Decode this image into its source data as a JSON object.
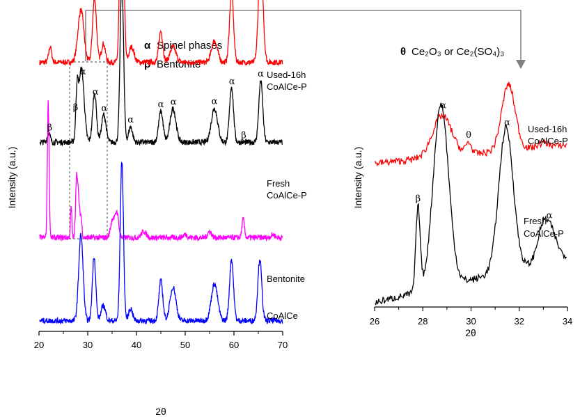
{
  "legend": {
    "alpha_symbol": "α",
    "alpha_text": "Spinel phases",
    "beta_symbol": "β",
    "beta_text": "Bentonite",
    "theta_symbol": "θ",
    "theta_text": "Ce₂O₃ or Ce₂(SO₄)₃"
  },
  "colors": {
    "used": "#ff0000",
    "fresh": "#000000",
    "bentonite": "#ff00ff",
    "coalce": "#0000ff",
    "connector": "#808080",
    "zoom_box": "#808080"
  },
  "chart_data": [
    {
      "type": "line",
      "panel": "left",
      "xlabel": "2θ",
      "ylabel": "Intensity (a.u.)",
      "xlim": [
        20,
        70
      ],
      "x_ticks": [
        20,
        30,
        40,
        50,
        60,
        70
      ],
      "y_ticks": "none (offset stacked patterns)",
      "zoom_region_x": [
        26,
        34
      ],
      "series": [
        {
          "name": "Used-16h\nCoAlCe-P",
          "key": "used",
          "color": "#ff0000",
          "baseline": 0.84,
          "peaks": [
            [
              22.3,
              0.05,
              0.3
            ],
            [
              28.6,
              0.17,
              0.6
            ],
            [
              31.4,
              0.21,
              0.4
            ],
            [
              33.2,
              0.06,
              0.4
            ],
            [
              37.0,
              0.84,
              0.35
            ],
            [
              39.0,
              0.05,
              0.5
            ],
            [
              45.0,
              0.1,
              0.4
            ],
            [
              47.5,
              0.05,
              0.6
            ],
            [
              56.0,
              0.07,
              0.6
            ],
            [
              59.5,
              0.23,
              0.4
            ],
            [
              65.5,
              0.36,
              0.45
            ]
          ]
        },
        {
          "name": "Fresh\nCoAlCe-P",
          "key": "fresh",
          "color": "#000000",
          "baseline": 0.58,
          "peaks": [
            [
              22.0,
              0.03,
              0.3
            ],
            [
              27.8,
              0.14,
              0.25
            ],
            [
              28.7,
              0.24,
              0.55
            ],
            [
              31.4,
              0.16,
              0.4
            ],
            [
              33.3,
              0.09,
              0.45
            ],
            [
              37.0,
              0.53,
              0.35
            ],
            [
              38.8,
              0.05,
              0.4
            ],
            [
              45.0,
              0.1,
              0.45
            ],
            [
              47.5,
              0.11,
              0.6
            ],
            [
              56.0,
              0.11,
              0.65
            ],
            [
              59.5,
              0.18,
              0.4
            ],
            [
              65.5,
              0.2,
              0.4
            ]
          ]
        },
        {
          "name": "Bentonite",
          "key": "bentonite",
          "color": "#ff00ff",
          "baseline": 0.27,
          "peaks": [
            [
              21.9,
              0.44,
              0.18
            ],
            [
              26.6,
              0.1,
              0.15
            ],
            [
              27.7,
              0.19,
              0.2
            ],
            [
              28.1,
              0.12,
              0.2
            ],
            [
              28.6,
              0.07,
              0.2
            ],
            [
              35.1,
              0.06,
              0.4
            ],
            [
              36.0,
              0.08,
              0.35
            ],
            [
              41.5,
              0.02,
              0.5
            ],
            [
              50.0,
              0.01,
              0.4
            ],
            [
              55.0,
              0.02,
              0.4
            ],
            [
              61.9,
              0.06,
              0.25
            ],
            [
              68.0,
              0.01,
              0.4
            ]
          ]
        },
        {
          "name": "CoAlCe",
          "key": "coalce",
          "color": "#0000ff",
          "baseline": 0.0,
          "peaks": [
            [
              28.6,
              0.28,
              0.45
            ],
            [
              31.3,
              0.21,
              0.35
            ],
            [
              33.2,
              0.05,
              0.45
            ],
            [
              37.0,
              0.52,
              0.33
            ],
            [
              38.8,
              0.04,
              0.4
            ],
            [
              45.0,
              0.13,
              0.4
            ],
            [
              47.5,
              0.11,
              0.6
            ],
            [
              56.0,
              0.12,
              0.65
            ],
            [
              59.5,
              0.2,
              0.4
            ],
            [
              65.3,
              0.2,
              0.4
            ]
          ]
        }
      ],
      "annotations": [
        {
          "symbol": "β",
          "x": 22.2,
          "row": "fresh"
        },
        {
          "symbol": "β",
          "x": 27.5,
          "row": "fresh"
        },
        {
          "symbol": "α",
          "x": 29.0,
          "row": "fresh"
        },
        {
          "symbol": "α",
          "x": 31.6,
          "row": "fresh"
        },
        {
          "symbol": "α",
          "x": 33.4,
          "row": "fresh"
        },
        {
          "symbol": "α",
          "x": 37.2,
          "row": "fresh"
        },
        {
          "symbol": "α",
          "x": 38.8,
          "row": "fresh"
        },
        {
          "symbol": "α",
          "x": 45.0,
          "row": "fresh"
        },
        {
          "symbol": "α",
          "x": 47.6,
          "row": "fresh"
        },
        {
          "symbol": "α",
          "x": 56.0,
          "row": "fresh"
        },
        {
          "symbol": "α",
          "x": 59.6,
          "row": "fresh"
        },
        {
          "symbol": "β",
          "x": 62.0,
          "row": "fresh"
        },
        {
          "symbol": "α",
          "x": 65.5,
          "row": "fresh"
        }
      ]
    },
    {
      "type": "line",
      "panel": "right",
      "xlabel": "2θ",
      "ylabel": "Intensity (a.u.)",
      "xlim": [
        26,
        34
      ],
      "x_ticks": [
        26,
        28,
        30,
        32,
        34
      ],
      "series": [
        {
          "name": "Used-16h\nCoAlCe-P",
          "key": "used",
          "color": "#ff0000",
          "base": 0.61,
          "slope": 0.01,
          "peaks": [
            [
              28.8,
              0.18,
              0.4
            ],
            [
              29.9,
              0.05,
              0.12
            ],
            [
              31.55,
              0.29,
              0.28
            ],
            [
              33.0,
              0.02,
              0.25
            ]
          ]
        },
        {
          "name": "Fresh\nCoAlCe-P",
          "key": "fresh",
          "color": "#000000",
          "base": 0.0,
          "slope": 0.025,
          "peaks": [
            [
              27.8,
              0.37,
              0.09
            ],
            [
              28.75,
              0.8,
              0.32
            ],
            [
              31.45,
              0.63,
              0.3
            ],
            [
              33.2,
              0.16,
              0.3
            ],
            [
              32.9,
              0.06,
              0.2
            ]
          ]
        }
      ],
      "annotations": [
        {
          "symbol": "β",
          "x": 27.8,
          "row": "fresh"
        },
        {
          "symbol": "α",
          "x": 28.85,
          "row": "fresh"
        },
        {
          "symbol": "θ",
          "x": 29.9,
          "row": "used"
        },
        {
          "symbol": "α",
          "x": 31.5,
          "row": "fresh"
        },
        {
          "symbol": "α",
          "x": 33.25,
          "row": "fresh"
        }
      ]
    }
  ]
}
